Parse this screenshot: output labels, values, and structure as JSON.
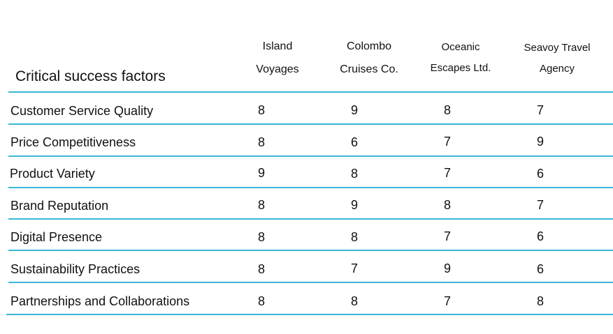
{
  "table": {
    "header_title": "Critical success factors",
    "columns": [
      {
        "line1": "Island",
        "line2": "Voyages"
      },
      {
        "line1": "Colombo",
        "line2": "Cruises Co."
      },
      {
        "line1": "Oceanic",
        "line2": "Escapes Ltd."
      },
      {
        "line1": "Seavoy Travel",
        "line2": "Agency"
      }
    ],
    "rows": [
      {
        "label": "Customer Service Quality",
        "values": [
          "8",
          "9",
          "8",
          "7"
        ]
      },
      {
        "label": "Price Competitiveness",
        "values": [
          "8",
          "6",
          "7",
          "9"
        ]
      },
      {
        "label": "Product Variety",
        "values": [
          "9",
          "8",
          "7",
          "6"
        ]
      },
      {
        "label": "Brand Reputation",
        "values": [
          "8",
          "9",
          "8",
          "7"
        ]
      },
      {
        "label": "Digital Presence",
        "values": [
          "8",
          "8",
          "7",
          "6"
        ]
      },
      {
        "label": "Sustainability Practices",
        "values": [
          "8",
          "7",
          "9",
          "6"
        ]
      },
      {
        "label": "Partnerships and Collaborations",
        "values": [
          "8",
          "8",
          "7",
          "8"
        ]
      }
    ]
  },
  "colors": {
    "rule": "#3bb6d8",
    "text": "#111111"
  }
}
